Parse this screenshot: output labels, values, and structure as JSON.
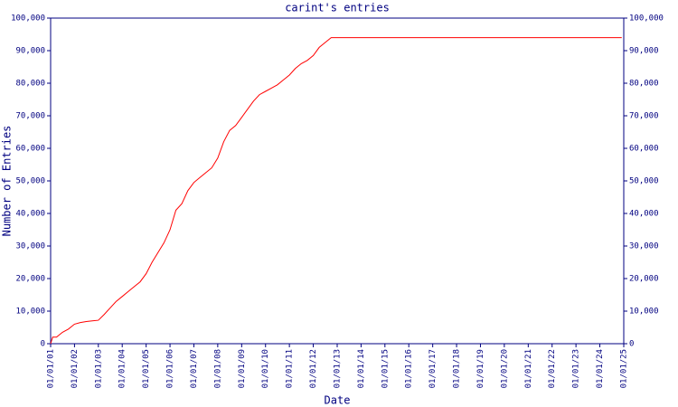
{
  "chart_data": {
    "type": "line",
    "title": "carint's entries",
    "xlabel": "Date",
    "ylabel": "Number of Entries",
    "x": [
      "01/01/01",
      "02/01/01",
      "04/01/01",
      "07/01/01",
      "10/01/01",
      "01/01/02",
      "04/01/02",
      "07/01/02",
      "10/01/02",
      "01/01/03",
      "04/01/03",
      "07/01/03",
      "10/01/03",
      "01/01/04",
      "04/01/04",
      "07/01/04",
      "10/01/04",
      "01/01/05",
      "04/01/05",
      "07/01/05",
      "10/01/05",
      "01/01/06",
      "04/01/06",
      "07/01/06",
      "10/01/06",
      "01/01/07",
      "04/01/07",
      "07/01/07",
      "10/01/07",
      "01/01/08",
      "04/01/08",
      "07/01/08",
      "10/01/08",
      "01/01/09",
      "04/01/09",
      "07/01/09",
      "10/01/09",
      "01/01/10",
      "04/01/10",
      "07/01/10",
      "10/01/10",
      "01/01/11",
      "04/01/11",
      "07/01/11",
      "10/01/11",
      "01/01/12",
      "04/01/12",
      "07/01/12",
      "10/01/12",
      "01/01/13",
      "12/01/24"
    ],
    "series": [
      {
        "color": "#ff0000",
        "values": [
          0,
          2000,
          2000,
          3500,
          4500,
          6000,
          6500,
          6800,
          7000,
          7200,
          9000,
          11000,
          13000,
          14500,
          16000,
          17500,
          19000,
          21500,
          25000,
          28000,
          31000,
          35000,
          41000,
          43000,
          47000,
          49500,
          51000,
          52500,
          54000,
          57000,
          62000,
          65500,
          67000,
          69500,
          72000,
          74500,
          76500,
          77500,
          78500,
          79500,
          81000,
          82500,
          84500,
          86000,
          87000,
          88500,
          91000,
          92500,
          94000,
          94000,
          94000
        ]
      }
    ],
    "xlim": [
      "01/01/01",
      "01/01/25"
    ],
    "xticks": [
      "01/01/01",
      "01/01/02",
      "01/01/03",
      "01/01/04",
      "01/01/05",
      "01/01/06",
      "01/01/07",
      "01/01/08",
      "01/01/09",
      "01/01/10",
      "01/01/11",
      "01/01/12",
      "01/01/13",
      "01/01/14",
      "01/01/15",
      "01/01/16",
      "01/01/17",
      "01/01/18",
      "01/01/19",
      "01/01/20",
      "01/01/21",
      "01/01/22",
      "01/01/23",
      "01/01/24",
      "01/01/25"
    ],
    "ylim": [
      0,
      100000
    ],
    "yticks": [
      0,
      {
        "value": 10000,
        "label": "10,000"
      },
      {
        "value": 20000,
        "label": "20,000"
      },
      {
        "value": 30000,
        "label": "30,000"
      },
      {
        "value": 40000,
        "label": "40,000"
      },
      {
        "value": 50000,
        "label": "50,000"
      },
      {
        "value": 60000,
        "label": "60,000"
      },
      {
        "value": 70000,
        "label": "70,000"
      },
      {
        "value": 80000,
        "label": "80,000"
      },
      {
        "value": 90000,
        "label": "90,000"
      },
      {
        "value": 100000,
        "label": "100,000"
      }
    ],
    "right_axis": true
  }
}
